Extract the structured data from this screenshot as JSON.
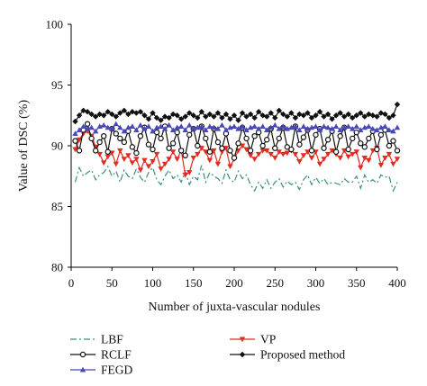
{
  "chart_data": {
    "type": "line",
    "xlabel": "Number of juxta-vascular nodules",
    "ylabel": "Value of DSC (%)",
    "xlim": [
      0,
      400
    ],
    "ylim": [
      80,
      100
    ],
    "xticks": [
      0,
      50,
      100,
      150,
      200,
      250,
      300,
      350,
      400
    ],
    "yticks": [
      80,
      85,
      90,
      95,
      100
    ],
    "grid": false,
    "legend_position": "bottom",
    "x": [
      5,
      10,
      15,
      20,
      25,
      30,
      35,
      40,
      45,
      50,
      55,
      60,
      65,
      70,
      75,
      80,
      85,
      90,
      95,
      100,
      105,
      110,
      115,
      120,
      125,
      130,
      135,
      140,
      145,
      150,
      155,
      160,
      165,
      170,
      175,
      180,
      185,
      190,
      195,
      200,
      205,
      210,
      215,
      220,
      225,
      230,
      235,
      240,
      245,
      250,
      255,
      260,
      265,
      270,
      275,
      280,
      285,
      290,
      295,
      300,
      305,
      310,
      315,
      320,
      325,
      330,
      335,
      340,
      345,
      350,
      355,
      360,
      365,
      370,
      375,
      380,
      385,
      390,
      395,
      400
    ],
    "series": [
      {
        "name": "LBF",
        "color": "#3a8f84",
        "dash": "7,3,2,3",
        "marker": "none",
        "values": [
          87.0,
          88.2,
          87.5,
          87.8,
          88.0,
          87.2,
          87.6,
          87.8,
          88.3,
          87.5,
          87.9,
          87.0,
          88.0,
          87.5,
          87.3,
          88.1,
          87.4,
          87.0,
          87.8,
          88.2,
          87.2,
          86.8,
          87.5,
          88.0,
          87.3,
          87.6,
          87.0,
          87.9,
          86.8,
          87.5,
          87.2,
          88.4,
          87.0,
          87.8,
          87.5,
          87.3,
          86.9,
          88.0,
          87.2,
          87.0,
          87.9,
          87.3,
          87.6,
          86.8,
          86.3,
          87.0,
          86.5,
          87.2,
          86.5,
          87.0,
          87.3,
          86.6,
          87.1,
          86.8,
          87.0,
          86.4,
          87.2,
          87.6,
          86.8,
          87.4,
          86.9,
          87.3,
          86.8,
          87.0,
          86.9,
          86.8,
          87.3,
          87.0,
          87.0,
          87.5,
          86.5,
          87.6,
          87.0,
          87.2,
          86.9,
          87.6,
          87.4,
          87.5,
          86.3,
          87.0
        ]
      },
      {
        "name": "VP",
        "color": "#e32b22",
        "marker": "triangle-down",
        "values": [
          89.7,
          90.5,
          91.0,
          91.2,
          90.8,
          89.9,
          89.3,
          88.6,
          89.1,
          89.4,
          88.5,
          89.6,
          88.9,
          89.2,
          88.6,
          88.9,
          88.0,
          88.8,
          88.3,
          88.7,
          89.3,
          88.1,
          88.5,
          88.9,
          89.5,
          88.9,
          89.6,
          87.6,
          87.8,
          89.0,
          89.3,
          89.8,
          89.5,
          88.8,
          89.6,
          88.5,
          89.5,
          89.8,
          88.3,
          88.9,
          89.6,
          90.0,
          89.7,
          89.2,
          88.9,
          89.3,
          89.6,
          89.6,
          89.3,
          89.0,
          89.5,
          89.3,
          89.4,
          89.6,
          89.3,
          88.7,
          89.2,
          89.5,
          89.0,
          89.5,
          88.5,
          88.9,
          89.3,
          89.6,
          89.3,
          89.0,
          89.6,
          89.1,
          89.3,
          89.5,
          88.2,
          89.0,
          88.8,
          89.6,
          89.8,
          88.4,
          89.0,
          89.3,
          88.5,
          88.9
        ]
      },
      {
        "name": "RCLF",
        "color": "#111111",
        "marker": "circle",
        "values": [
          90.4,
          89.6,
          91.3,
          91.8,
          90.6,
          89.6,
          90.3,
          90.8,
          89.5,
          91.4,
          91.0,
          90.6,
          90.3,
          91.2,
          89.9,
          89.4,
          90.8,
          91.5,
          90.1,
          89.7,
          91.1,
          90.6,
          91.6,
          89.8,
          90.2,
          91.1,
          89.6,
          89.2,
          90.9,
          91.4,
          90.0,
          91.6,
          90.6,
          89.5,
          91.4,
          90.3,
          89.8,
          91.0,
          89.6,
          89.0,
          90.2,
          91.5,
          90.6,
          89.6,
          90.8,
          91.1,
          90.0,
          90.5,
          91.4,
          89.8,
          90.6,
          91.5,
          89.9,
          89.7,
          91.6,
          90.1,
          90.7,
          91.3,
          89.6,
          90.9,
          91.4,
          89.8,
          90.5,
          91.2,
          89.5,
          90.8,
          91.5,
          89.7,
          90.6,
          91.1,
          90.2,
          89.9,
          90.6,
          91.2,
          89.7,
          90.9,
          91.3,
          90.0,
          90.4,
          89.6
        ]
      },
      {
        "name": "FEGD",
        "color": "#4848b8",
        "marker": "triangle-up",
        "values": [
          91.0,
          91.3,
          91.6,
          91.4,
          91.5,
          91.2,
          91.6,
          91.7,
          91.5,
          91.4,
          91.8,
          91.5,
          91.2,
          91.5,
          91.6,
          91.3,
          91.7,
          91.4,
          91.6,
          91.2,
          91.5,
          91.6,
          91.4,
          91.7,
          91.3,
          91.5,
          91.6,
          91.3,
          91.7,
          91.4,
          91.5,
          91.6,
          91.3,
          91.6,
          91.5,
          91.4,
          91.7,
          91.3,
          91.5,
          91.6,
          91.4,
          91.6,
          91.3,
          91.5,
          91.6,
          91.4,
          91.6,
          91.3,
          91.5,
          91.7,
          91.4,
          91.6,
          91.4,
          91.5,
          91.6,
          91.3,
          91.6,
          91.4,
          91.5,
          91.6,
          91.3,
          91.6,
          91.5,
          91.4,
          91.6,
          91.3,
          91.5,
          91.6,
          91.4,
          91.6,
          91.3,
          91.5,
          91.6,
          91.4,
          91.3,
          91.5,
          91.6,
          91.3,
          91.2,
          91.5
        ]
      },
      {
        "name": "Proposed method",
        "color": "#111111",
        "marker": "diamond",
        "values": [
          92.0,
          92.5,
          92.9,
          92.8,
          92.6,
          92.4,
          92.6,
          92.5,
          92.8,
          92.6,
          92.4,
          92.7,
          92.9,
          92.6,
          92.8,
          92.7,
          92.8,
          92.5,
          92.2,
          92.7,
          92.3,
          92.1,
          92.4,
          92.3,
          92.6,
          92.5,
          92.2,
          92.4,
          92.7,
          92.5,
          92.3,
          92.8,
          92.4,
          92.6,
          92.4,
          92.7,
          92.3,
          92.6,
          92.2,
          92.5,
          92.1,
          92.7,
          92.4,
          92.6,
          92.3,
          92.8,
          92.5,
          92.4,
          92.7,
          92.3,
          92.9,
          92.6,
          92.4,
          92.7,
          92.3,
          92.6,
          92.5,
          92.7,
          92.3,
          92.5,
          92.8,
          92.4,
          92.6,
          92.2,
          92.5,
          92.7,
          92.4,
          92.6,
          92.3,
          92.5,
          92.7,
          92.4,
          92.6,
          92.5,
          92.4,
          92.7,
          92.6,
          92.3,
          92.5,
          93.4
        ]
      }
    ]
  },
  "legend_columns": [
    [
      "LBF",
      "RCLF",
      "FEGD"
    ],
    [
      "VP",
      "Proposed method"
    ]
  ]
}
